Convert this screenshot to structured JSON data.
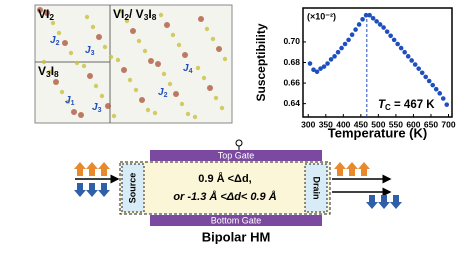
{
  "chart_data": {
    "type": "scatter",
    "y_label": "Susceptibility",
    "multiplier": "(×10⁻²)",
    "x_label": "Temperature (K)",
    "color": "#1f4fbf",
    "vline": 467,
    "annotation": {
      "italic": "T",
      "sub": "C",
      "rest": " = 467 K"
    },
    "x": [
      305,
      315,
      325,
      335,
      345,
      355,
      365,
      375,
      385,
      395,
      405,
      415,
      425,
      435,
      445,
      455,
      465,
      475,
      485,
      495,
      505,
      515,
      525,
      535,
      545,
      555,
      565,
      575,
      585,
      595,
      605,
      615,
      625,
      635,
      645,
      655,
      665,
      675,
      685,
      695
    ],
    "values": [
      0.679,
      0.673,
      0.671,
      0.674,
      0.676,
      0.679,
      0.683,
      0.686,
      0.69,
      0.694,
      0.698,
      0.702,
      0.707,
      0.712,
      0.717,
      0.722,
      0.726,
      0.726,
      0.723,
      0.72,
      0.717,
      0.714,
      0.71,
      0.706,
      0.702,
      0.698,
      0.694,
      0.69,
      0.686,
      0.682,
      0.678,
      0.674,
      0.67,
      0.666,
      0.662,
      0.658,
      0.654,
      0.65,
      0.645,
      0.639
    ],
    "xlim": [
      285,
      710
    ],
    "ylim": [
      0.627,
      0.733
    ],
    "xticks": [
      300,
      350,
      400,
      450,
      500,
      550,
      600,
      650,
      700
    ],
    "yticks": [
      0.64,
      0.66,
      0.68,
      {
        "value": 0.7,
        "label": "0.70"
      }
    ]
  },
  "panels": [
    {
      "label": [
        "VI",
        "2"
      ]
    },
    {
      "label": [
        "VI",
        "2",
        "/ V",
        "3",
        "I",
        "8"
      ]
    },
    {
      "label": [
        "V",
        "3",
        "I",
        "8"
      ]
    }
  ],
  "couplings": [
    [
      "J",
      "2"
    ],
    [
      "J",
      "3"
    ],
    [
      "J",
      "1"
    ],
    [
      "J",
      "3"
    ],
    [
      "J",
      "4"
    ],
    [
      "J",
      "2"
    ]
  ],
  "diagram": {
    "top_gate": "Top Gate",
    "bottom_gate": "Bottom Gate",
    "source": "Source",
    "drain": "Drain",
    "line1": "0.9 Å <Δd,",
    "line2": "or -1.3 Å <Δd< 0.9 Å",
    "caption": "Bipolar HM"
  }
}
